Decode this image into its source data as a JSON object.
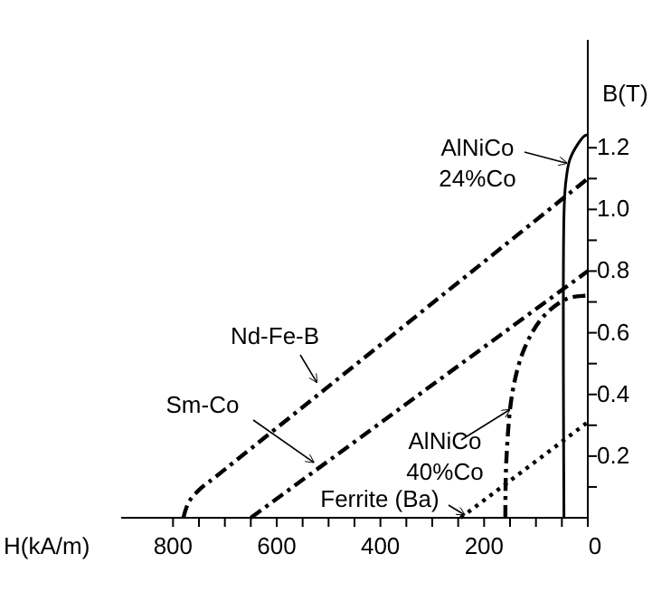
{
  "chart_data": {
    "type": "line",
    "xlabel": "H(kA/m)",
    "ylabel": "B(T)",
    "xlim": [
      900,
      0
    ],
    "xticks": [
      800,
      {
        "value": 750,
        "label": null
      },
      {
        "value": 700,
        "label": null
      },
      600,
      {
        "value": 550,
        "label": null
      },
      {
        "value": 500,
        "label": null
      },
      {
        "value": 450,
        "label": null
      },
      400,
      {
        "value": 350,
        "label": null
      },
      {
        "value": 300,
        "label": null
      },
      {
        "value": 250,
        "label": null
      },
      200,
      {
        "value": 150,
        "label": null
      },
      {
        "value": 100,
        "label": null
      },
      {
        "value": 50,
        "label": null
      },
      0,
      {
        "value": 650,
        "label": null
      }
    ],
    "ylim": [
      0,
      1.55
    ],
    "yticks": [
      {
        "value": 0.1,
        "label": null
      },
      0.2,
      {
        "value": 0.3,
        "label": null
      },
      0.4,
      {
        "value": 0.5,
        "label": null
      },
      0.6,
      {
        "value": 0.7,
        "label": null
      },
      0.8,
      {
        "value": 0.9,
        "label": null
      },
      {
        "value": 1.0,
        "label": "1.0"
      },
      {
        "value": 1.1,
        "label": null
      },
      1.2
    ],
    "series": [
      {
        "color": "#000000",
        "line_style": "dashed",
        "x": [
          780,
          770,
          750,
          720,
          0
        ],
        "values": [
          0,
          0.05,
          0.09,
          0.13,
          1.1
        ]
      },
      {
        "color": "#000000",
        "line_style": "dashed",
        "x": [
          650,
          0
        ],
        "values": [
          0,
          0.8
        ]
      },
      {
        "color": "#000000",
        "line_style": "solid",
        "x": [
          46,
          46,
          43,
          35,
          20,
          5,
          0
        ],
        "values": [
          0,
          0.98,
          1.08,
          1.16,
          1.21,
          1.24,
          1.24
        ]
      },
      {
        "color": "#000000",
        "line_style": "dashed",
        "x": [
          159,
          157,
          145,
          122,
          87,
          41,
          6,
          0
        ],
        "values": [
          0,
          0.19,
          0.41,
          0.55,
          0.65,
          0.71,
          0.72,
          0.72
        ]
      },
      {
        "color": "#000000",
        "line_style": "dotted",
        "x": [
          245,
          0
        ],
        "values": [
          0,
          0.31
        ]
      }
    ],
    "annotations": [
      {
        "text": "AlNiCo 24%Co",
        "x": 41,
        "y": 1.15
      },
      {
        "text": "Nd-Fe-B",
        "x": 523,
        "y": 0.44
      },
      {
        "text": "Sm-Co",
        "x": 529,
        "y": 0.18
      },
      {
        "text": "AlNiCo 40%Co",
        "x": 151,
        "y": 0.35
      },
      {
        "text": "Ferrite (Ba)",
        "x": 238,
        "y": 0.01
      }
    ]
  }
}
